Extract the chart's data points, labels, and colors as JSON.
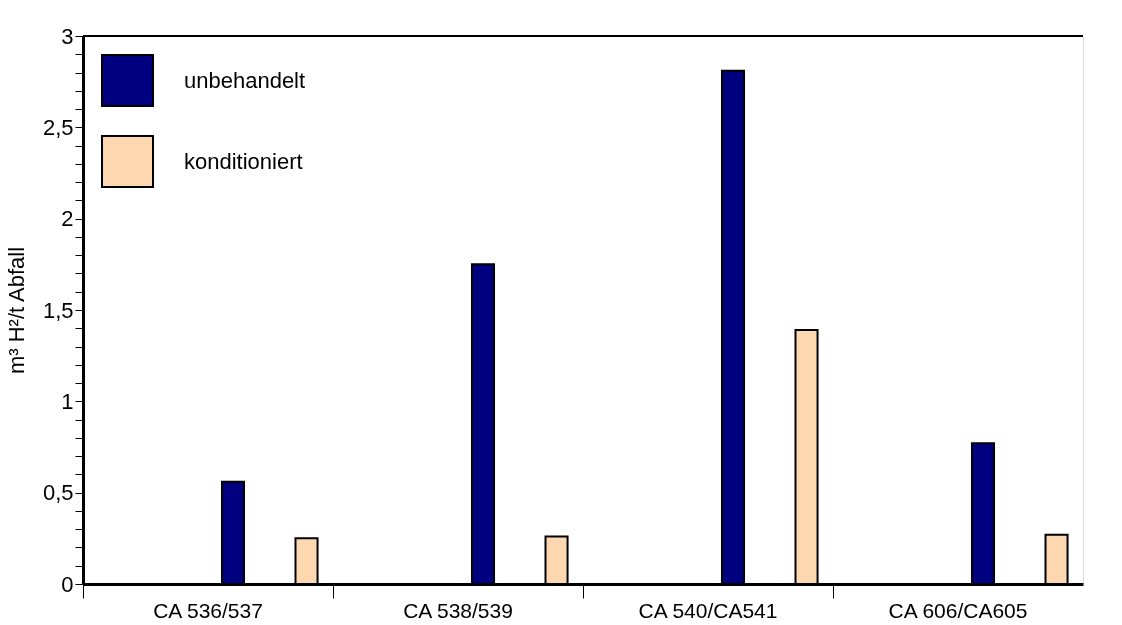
{
  "chart_data": {
    "type": "bar",
    "ylabel": "m³ H²/t Abfall",
    "categories": [
      "CA 536/537",
      "CA 538/539",
      "CA 540/CA541",
      "CA 606/CA605"
    ],
    "series": [
      {
        "name": "unbehandelt",
        "color": "#000080",
        "values": [
          0.56,
          1.75,
          2.81,
          0.77
        ]
      },
      {
        "name": "konditioniert",
        "color": "#fdd7b0",
        "values": [
          0.25,
          0.26,
          1.39,
          0.27
        ]
      }
    ],
    "ylim": [
      0,
      3
    ],
    "yticks": [
      0,
      {
        "value": 0.1,
        "label": null
      },
      {
        "value": 0.2,
        "label": null
      },
      {
        "value": 0.3,
        "label": null
      },
      {
        "value": 0.4,
        "label": null
      },
      {
        "value": 0.5,
        "label": "0,5"
      },
      {
        "value": 0.6,
        "label": null
      },
      {
        "value": 0.7,
        "label": null
      },
      {
        "value": 0.8,
        "label": null
      },
      {
        "value": 0.9,
        "label": null
      },
      1,
      {
        "value": 1.1,
        "label": null
      },
      {
        "value": 1.2,
        "label": null
      },
      {
        "value": 1.3,
        "label": null
      },
      {
        "value": 1.4,
        "label": null
      },
      {
        "value": 1.5,
        "label": "1,5"
      },
      {
        "value": 1.6,
        "label": null
      },
      {
        "value": 1.7,
        "label": null
      },
      {
        "value": 1.8,
        "label": null
      },
      {
        "value": 1.9,
        "label": null
      },
      2,
      {
        "value": 2.1,
        "label": null
      },
      {
        "value": 2.2,
        "label": null
      },
      {
        "value": 2.3,
        "label": null
      },
      {
        "value": 2.4,
        "label": null
      },
      {
        "value": 2.5,
        "label": "2,5"
      },
      {
        "value": 2.6,
        "label": null
      },
      {
        "value": 2.7,
        "label": null
      },
      {
        "value": 2.8,
        "label": null
      },
      {
        "value": 2.9,
        "label": null
      },
      3
    ],
    "grid": false,
    "legend": "top left"
  }
}
